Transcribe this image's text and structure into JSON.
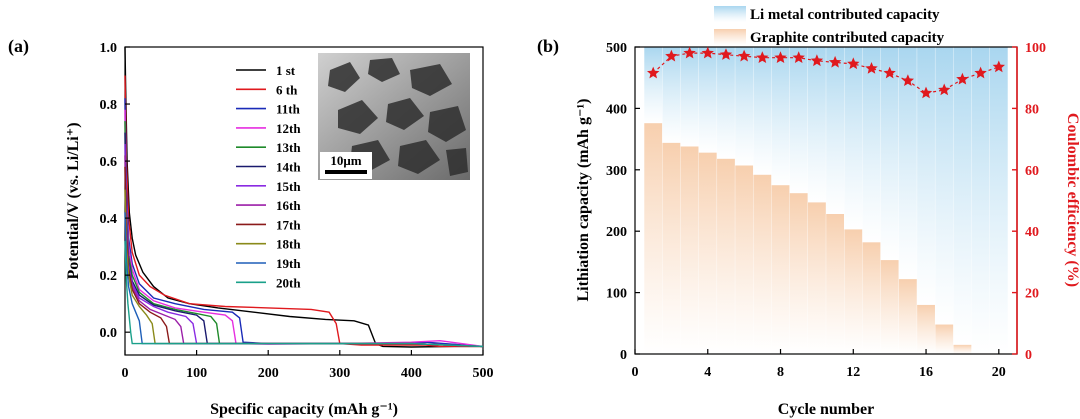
{
  "panel_a_label": "(a)",
  "panel_b_label": "(b)",
  "colors": {
    "ce_red": "#e0191e",
    "li_metal_blue": "#b9def0",
    "graphite_orange": "#f9dcc4"
  },
  "inset": {
    "image": "sem-micrograph",
    "scale_text": "10μm"
  },
  "chart_data": [
    {
      "type": "line",
      "title": "",
      "xlabel": "Specific capacity (mAh g⁻¹)",
      "ylabel": "Potential/V (vs. Li/Li⁺)",
      "xlim": [
        0,
        500
      ],
      "ylim": [
        -0.08,
        1.0
      ],
      "x_ticks": [
        "0",
        "100",
        "200",
        "300",
        "400",
        "500"
      ],
      "y_ticks": [
        "0.0",
        "0.2",
        "0.4",
        "0.6",
        "0.8",
        "1.0"
      ],
      "legend_position": "top-right",
      "series": [
        {
          "name": "1 st",
          "color": "#000000",
          "points": [
            [
              0,
              1.0
            ],
            [
              1,
              0.85
            ],
            [
              3,
              0.6
            ],
            [
              6,
              0.42
            ],
            [
              10,
              0.33
            ],
            [
              15,
              0.27
            ],
            [
              25,
              0.21
            ],
            [
              40,
              0.16
            ],
            [
              60,
              0.12
            ],
            [
              90,
              0.1
            ],
            [
              130,
              0.085
            ],
            [
              180,
              0.07
            ],
            [
              230,
              0.055
            ],
            [
              280,
              0.045
            ],
            [
              320,
              0.04
            ],
            [
              340,
              0.025
            ],
            [
              350,
              -0.04
            ],
            [
              360,
              -0.05
            ],
            [
              400,
              -0.052
            ],
            [
              460,
              -0.05
            ],
            [
              500,
              -0.05
            ]
          ]
        },
        {
          "name": "6 th",
          "color": "#e0191e",
          "points": [
            [
              0,
              0.9
            ],
            [
              2,
              0.6
            ],
            [
              5,
              0.4
            ],
            [
              10,
              0.28
            ],
            [
              20,
              0.2
            ],
            [
              35,
              0.16
            ],
            [
              55,
              0.13
            ],
            [
              90,
              0.1
            ],
            [
              140,
              0.09
            ],
            [
              200,
              0.085
            ],
            [
              260,
              0.08
            ],
            [
              285,
              0.07
            ],
            [
              295,
              0.03
            ],
            [
              300,
              -0.04
            ],
            [
              330,
              -0.045
            ],
            [
              380,
              -0.045
            ],
            [
              420,
              -0.045
            ],
            [
              440,
              -0.05
            ],
            [
              500,
              -0.05
            ]
          ]
        },
        {
          "name": "11th",
          "color": "#1a2bb8",
          "points": [
            [
              0,
              0.82
            ],
            [
              2,
              0.5
            ],
            [
              5,
              0.33
            ],
            [
              10,
              0.24
            ],
            [
              20,
              0.17
            ],
            [
              40,
              0.12
            ],
            [
              70,
              0.1
            ],
            [
              110,
              0.08
            ],
            [
              150,
              0.07
            ],
            [
              160,
              0.05
            ],
            [
              165,
              -0.035
            ],
            [
              200,
              -0.04
            ],
            [
              280,
              -0.04
            ],
            [
              360,
              -0.04
            ],
            [
              420,
              -0.035
            ],
            [
              500,
              -0.05
            ]
          ]
        },
        {
          "name": "12th",
          "color": "#e62ee0",
          "points": [
            [
              0,
              0.78
            ],
            [
              2,
              0.45
            ],
            [
              5,
              0.3
            ],
            [
              10,
              0.22
            ],
            [
              20,
              0.15
            ],
            [
              40,
              0.11
            ],
            [
              70,
              0.085
            ],
            [
              110,
              0.07
            ],
            [
              140,
              0.06
            ],
            [
              150,
              0.04
            ],
            [
              155,
              -0.04
            ],
            [
              200,
              -0.042
            ],
            [
              300,
              -0.04
            ],
            [
              400,
              -0.035
            ],
            [
              440,
              -0.03
            ],
            [
              500,
              -0.05
            ]
          ]
        },
        {
          "name": "13th",
          "color": "#1f8a2a",
          "points": [
            [
              0,
              0.74
            ],
            [
              2,
              0.42
            ],
            [
              5,
              0.27
            ],
            [
              10,
              0.2
            ],
            [
              20,
              0.14
            ],
            [
              40,
              0.1
            ],
            [
              70,
              0.08
            ],
            [
              100,
              0.065
            ],
            [
              120,
              0.055
            ],
            [
              128,
              0.03
            ],
            [
              132,
              -0.04
            ],
            [
              200,
              -0.04
            ],
            [
              300,
              -0.04
            ],
            [
              400,
              -0.04
            ],
            [
              500,
              -0.05
            ]
          ]
        },
        {
          "name": "14th",
          "color": "#1a1a6e",
          "points": [
            [
              0,
              0.7
            ],
            [
              2,
              0.4
            ],
            [
              5,
              0.25
            ],
            [
              10,
              0.18
            ],
            [
              20,
              0.13
            ],
            [
              40,
              0.095
            ],
            [
              70,
              0.075
            ],
            [
              100,
              0.06
            ],
            [
              110,
              0.04
            ],
            [
              115,
              -0.04
            ],
            [
              200,
              -0.04
            ],
            [
              300,
              -0.04
            ],
            [
              400,
              -0.04
            ],
            [
              500,
              -0.05
            ]
          ]
        },
        {
          "name": "15th",
          "color": "#8a2be2",
          "points": [
            [
              0,
              0.66
            ],
            [
              2,
              0.38
            ],
            [
              5,
              0.24
            ],
            [
              10,
              0.17
            ],
            [
              20,
              0.12
            ],
            [
              40,
              0.09
            ],
            [
              60,
              0.07
            ],
            [
              85,
              0.055
            ],
            [
              95,
              0.03
            ],
            [
              100,
              -0.04
            ],
            [
              200,
              -0.04
            ],
            [
              300,
              -0.04
            ],
            [
              400,
              -0.04
            ],
            [
              500,
              -0.05
            ]
          ]
        },
        {
          "name": "16th",
          "color": "#9b1fa8",
          "points": [
            [
              0,
              0.62
            ],
            [
              2,
              0.36
            ],
            [
              5,
              0.23
            ],
            [
              10,
              0.16
            ],
            [
              20,
              0.11
            ],
            [
              35,
              0.08
            ],
            [
              55,
              0.06
            ],
            [
              70,
              0.045
            ],
            [
              78,
              0.02
            ],
            [
              82,
              -0.04
            ],
            [
              200,
              -0.04
            ],
            [
              300,
              -0.04
            ],
            [
              400,
              -0.04
            ],
            [
              500,
              -0.05
            ]
          ]
        },
        {
          "name": "17th",
          "color": "#8b1a1a",
          "points": [
            [
              0,
              0.58
            ],
            [
              2,
              0.34
            ],
            [
              5,
              0.22
            ],
            [
              10,
              0.15
            ],
            [
              20,
              0.1
            ],
            [
              35,
              0.07
            ],
            [
              50,
              0.05
            ],
            [
              58,
              0.02
            ],
            [
              62,
              -0.04
            ],
            [
              200,
              -0.04
            ],
            [
              300,
              -0.04
            ],
            [
              400,
              -0.04
            ],
            [
              500,
              -0.05
            ]
          ]
        },
        {
          "name": "18th",
          "color": "#8a8a1a",
          "points": [
            [
              0,
              0.5
            ],
            [
              2,
              0.3
            ],
            [
              5,
              0.2
            ],
            [
              10,
              0.13
            ],
            [
              20,
              0.09
            ],
            [
              30,
              0.06
            ],
            [
              38,
              0.03
            ],
            [
              42,
              -0.04
            ],
            [
              200,
              -0.04
            ],
            [
              300,
              -0.04
            ],
            [
              400,
              -0.04
            ],
            [
              500,
              -0.05
            ]
          ]
        },
        {
          "name": "19th",
          "color": "#1e5fb8",
          "points": [
            [
              0,
              0.42
            ],
            [
              2,
              0.25
            ],
            [
              5,
              0.16
            ],
            [
              10,
              0.1
            ],
            [
              15,
              0.07
            ],
            [
              20,
              0.04
            ],
            [
              24,
              -0.04
            ],
            [
              200,
              -0.04
            ],
            [
              300,
              -0.04
            ],
            [
              400,
              -0.04
            ],
            [
              500,
              -0.05
            ]
          ]
        },
        {
          "name": "20th",
          "color": "#1aa08a",
          "points": [
            [
              0,
              0.32
            ],
            [
              2,
              0.18
            ],
            [
              4,
              0.1
            ],
            [
              6,
              0.05
            ],
            [
              8,
              0.0
            ],
            [
              10,
              -0.04
            ],
            [
              200,
              -0.04
            ],
            [
              300,
              -0.04
            ],
            [
              400,
              -0.04
            ],
            [
              500,
              -0.05
            ]
          ]
        }
      ]
    },
    {
      "type": "bar",
      "title": "",
      "xlabel": "Cycle number",
      "ylabel": "Lithiation capacity (mAh g⁻¹)",
      "y2label": "Coulombic efficiency (%)",
      "xlim": [
        0,
        21
      ],
      "ylim": [
        0,
        500
      ],
      "y2lim": [
        0,
        100
      ],
      "x_ticks": [
        "0",
        "4",
        "8",
        "12",
        "16",
        "20"
      ],
      "y_ticks": [
        "0",
        "100",
        "200",
        "300",
        "400",
        "500"
      ],
      "y2_ticks": [
        "0",
        "20",
        "40",
        "60",
        "80",
        "100"
      ],
      "legend_position": "top",
      "x": [
        1,
        2,
        3,
        4,
        5,
        6,
        7,
        8,
        9,
        10,
        11,
        12,
        13,
        14,
        15,
        16,
        17,
        18,
        19,
        20
      ],
      "series": [
        {
          "name": "Li metal contributed capacity",
          "kind": "stacked-bar",
          "values": [
            124,
            156,
            162,
            172,
            182,
            193,
            208,
            225,
            238,
            253,
            272,
            297,
            318,
            347,
            378,
            420,
            452,
            485,
            500,
            500
          ]
        },
        {
          "name": "Graphite contributed capacity",
          "kind": "stacked-bar",
          "values": [
            376,
            344,
            338,
            328,
            318,
            307,
            292,
            275,
            262,
            247,
            228,
            203,
            182,
            153,
            122,
            80,
            48,
            15,
            0,
            0
          ]
        },
        {
          "name": "Coulombic efficiency",
          "kind": "line-star",
          "axis": "right",
          "values": [
            91.5,
            97,
            98,
            98,
            97.5,
            97,
            96.5,
            96.5,
            96.5,
            95.5,
            95,
            94.5,
            93,
            91.5,
            89,
            85,
            86,
            89.5,
            91.5,
            93.5
          ]
        }
      ]
    }
  ]
}
